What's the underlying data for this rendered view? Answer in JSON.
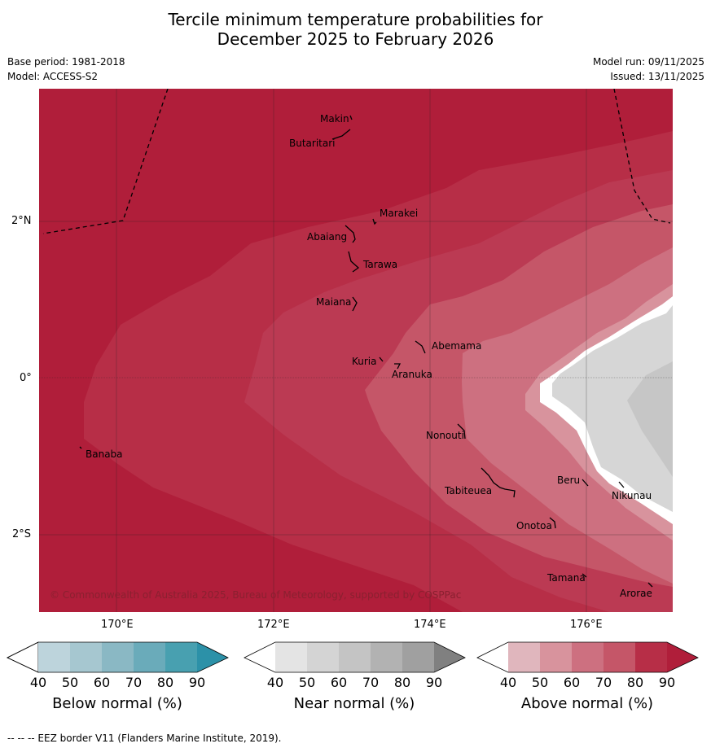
{
  "title_line1": "Tercile minimum temperature probabilities for",
  "title_line2": "December 2025 to February 2026",
  "base_period": "Base period: 1981-2018",
  "model": "Model: ACCESS-S2",
  "model_run": "Model run: 09/11/2025",
  "issued": "Issued: 13/11/2025",
  "map": {
    "copyright": "© Commonwealth of Australia 2025, Bureau of Meteorology, supported by COSPPac",
    "lon_labels": [
      "170°E",
      "172°E",
      "174°E",
      "176°E"
    ],
    "lat_labels": [
      "2°N",
      "0°",
      "2°S"
    ],
    "places": [
      "Makin",
      "Butaritari",
      "Marakei",
      "Abaiang",
      "Tarawa",
      "Maiana",
      "Abemama",
      "Kuria",
      "Aranuka",
      "Banaba",
      "Nonouti",
      "Beru",
      "Tabiteuea",
      "Nikunau",
      "Onotoa",
      "Tamana",
      "Arorae"
    ]
  },
  "colorbars": [
    {
      "title": "Below normal (%)",
      "ticks": [
        "40",
        "50",
        "60",
        "70",
        "80",
        "90"
      ],
      "colors": [
        "#ffffff",
        "#bdd4dc",
        "#a6c7d0",
        "#8ab8c4",
        "#6aabba",
        "#48a0b0",
        "#2c91a8"
      ]
    },
    {
      "title": "Near normal (%)",
      "ticks": [
        "40",
        "50",
        "60",
        "70",
        "80",
        "90"
      ],
      "colors": [
        "#ffffff",
        "#e4e4e4",
        "#d4d4d4",
        "#c4c4c4",
        "#b2b2b2",
        "#a0a0a0",
        "#808080"
      ]
    },
    {
      "title": "Above normal (%)",
      "ticks": [
        "40",
        "50",
        "60",
        "70",
        "80",
        "90"
      ],
      "colors": [
        "#ffffff",
        "#e0b6bd",
        "#d8939d",
        "#cd7080",
        "#c55668",
        "#b72e47",
        "#b01e3a"
      ]
    }
  ],
  "eez_note": "--  --  -- EEZ border V11 (Flanders Marine Institute, 2019)."
}
